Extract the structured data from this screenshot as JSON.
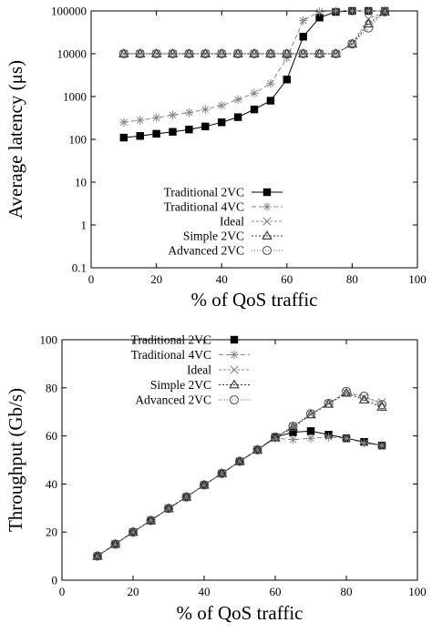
{
  "chart_data": [
    {
      "type": "line",
      "ylabel": "Average latency (μs)",
      "xlabel": "% of QoS traffic",
      "xlim": [
        0,
        100
      ],
      "ylim": [
        0.1,
        100000
      ],
      "yscale": "log",
      "x_ticks": [
        0,
        20,
        40,
        60,
        80,
        100
      ],
      "y_ticks": [
        {
          "value": 0.1,
          "label": "0.1"
        },
        {
          "value": 1,
          "label": "1"
        },
        {
          "value": 10,
          "label": "10"
        },
        {
          "value": 100,
          "label": "100"
        },
        {
          "value": 1000,
          "label": "1000"
        },
        {
          "value": 10000,
          "label": "10000"
        },
        {
          "value": 100000,
          "label": "100000"
        }
      ],
      "legend_position": "bottom-right",
      "series": [
        {
          "name": "Traditional 2VC",
          "marker": "filled-square",
          "color": "#000000",
          "dash": "",
          "x": [
            10,
            15,
            20,
            25,
            30,
            35,
            40,
            45,
            50,
            55,
            60,
            65,
            70,
            75,
            80,
            85,
            90
          ],
          "y": [
            110,
            120,
            135,
            150,
            170,
            200,
            250,
            330,
            500,
            800,
            2500,
            25000,
            70000,
            95000,
            100000,
            100000,
            100000
          ]
        },
        {
          "name": "Traditional 4VC",
          "marker": "star",
          "color": "#888888",
          "dash": "5,3",
          "x": [
            10,
            15,
            20,
            25,
            30,
            35,
            40,
            45,
            50,
            55,
            60,
            65,
            70,
            75,
            80,
            85,
            90
          ],
          "y": [
            250,
            280,
            320,
            370,
            420,
            500,
            620,
            850,
            1200,
            2000,
            8000,
            60000,
            95000,
            100000,
            100000,
            100000,
            100000
          ]
        },
        {
          "name": "Ideal",
          "marker": "cross",
          "color": "#888888",
          "dash": "3,2",
          "x": [
            10,
            15,
            20,
            25,
            30,
            35,
            40,
            45,
            50,
            55,
            60,
            65,
            70,
            75,
            80,
            85,
            90
          ],
          "y": [
            10000,
            10000,
            10000,
            10000,
            10000,
            10000,
            10000,
            10000,
            10000,
            10000,
            10000,
            10000,
            10000,
            10000,
            17000,
            65000,
            95000
          ]
        },
        {
          "name": "Simple 2VC",
          "marker": "triangle",
          "color": "#333333",
          "dash": "2,2",
          "x": [
            10,
            15,
            20,
            25,
            30,
            35,
            40,
            45,
            50,
            55,
            60,
            65,
            70,
            75,
            80,
            85,
            90
          ],
          "y": [
            10000,
            10000,
            10000,
            10000,
            10000,
            10000,
            10000,
            10000,
            10000,
            10000,
            10000,
            10000,
            10000,
            10000,
            17000,
            50000,
            95000
          ]
        },
        {
          "name": "Advanced 2VC",
          "marker": "circle",
          "color": "#555555",
          "dash": "1,2",
          "x": [
            10,
            15,
            20,
            25,
            30,
            35,
            40,
            45,
            50,
            55,
            60,
            65,
            70,
            75,
            80,
            85,
            90
          ],
          "y": [
            10000,
            10000,
            10000,
            10000,
            10000,
            10000,
            10000,
            10000,
            10000,
            10000,
            10000,
            10000,
            10000,
            10000,
            17000,
            40000,
            95000
          ]
        }
      ]
    },
    {
      "type": "line",
      "ylabel": "Throughput (Gb/s)",
      "xlabel": "% of QoS traffic",
      "xlim": [
        0,
        100
      ],
      "ylim": [
        0,
        100
      ],
      "yscale": "linear",
      "x_ticks": [
        0,
        20,
        40,
        60,
        80,
        100
      ],
      "y_ticks": [
        {
          "value": 0,
          "label": "0"
        },
        {
          "value": 20,
          "label": "20"
        },
        {
          "value": 40,
          "label": "40"
        },
        {
          "value": 60,
          "label": "60"
        },
        {
          "value": 80,
          "label": "80"
        },
        {
          "value": 100,
          "label": "100"
        }
      ],
      "legend_position": "top-left",
      "series": [
        {
          "name": "Traditional 2VC",
          "marker": "filled-square",
          "color": "#000000",
          "dash": "",
          "x": [
            10,
            15,
            20,
            25,
            30,
            35,
            40,
            45,
            50,
            55,
            60,
            65,
            70,
            75,
            80,
            85,
            90
          ],
          "y": [
            10,
            15,
            20,
            24.8,
            29.8,
            34.6,
            39.6,
            44.4,
            49.4,
            54.2,
            59.5,
            61.5,
            62,
            60.5,
            59,
            57.5,
            56
          ]
        },
        {
          "name": "Traditional 4VC",
          "marker": "star",
          "color": "#888888",
          "dash": "5,3",
          "x": [
            10,
            15,
            20,
            25,
            30,
            35,
            40,
            45,
            50,
            55,
            60,
            65,
            70,
            75,
            80,
            85,
            90
          ],
          "y": [
            10,
            15,
            20,
            24.8,
            29.8,
            34.6,
            39.6,
            44.4,
            49.4,
            54.2,
            59,
            58.5,
            59,
            59.5,
            59,
            57,
            56
          ]
        },
        {
          "name": "Ideal",
          "marker": "cross",
          "color": "#888888",
          "dash": "3,2",
          "x": [
            10,
            15,
            20,
            25,
            30,
            35,
            40,
            45,
            50,
            55,
            60,
            65,
            70,
            75,
            80,
            85,
            90
          ],
          "y": [
            10,
            15,
            20,
            24.8,
            29.8,
            34.6,
            39.6,
            44.4,
            49.4,
            54.2,
            59.2,
            64,
            69,
            73.5,
            78,
            76,
            74
          ]
        },
        {
          "name": "Simple 2VC",
          "marker": "triangle",
          "color": "#333333",
          "dash": "2,2",
          "x": [
            10,
            15,
            20,
            25,
            30,
            35,
            40,
            45,
            50,
            55,
            60,
            65,
            70,
            75,
            80,
            85,
            90
          ],
          "y": [
            10,
            15,
            20,
            24.8,
            29.8,
            34.6,
            39.6,
            44.4,
            49.4,
            54.2,
            59.2,
            63.5,
            68.8,
            73.2,
            77.8,
            75,
            72
          ]
        },
        {
          "name": "Advanced 2VC",
          "marker": "circle",
          "color": "#555555",
          "dash": "1,2",
          "x": [
            10,
            15,
            20,
            25,
            30,
            35,
            40,
            45,
            50,
            55,
            60,
            65,
            70,
            75,
            80,
            85,
            90
          ],
          "y": [
            10,
            15,
            20,
            24.8,
            29.8,
            34.6,
            39.6,
            44.4,
            49.4,
            54.2,
            59.5,
            64,
            69.2,
            73.5,
            78.5,
            76.5,
            73
          ]
        }
      ]
    }
  ]
}
